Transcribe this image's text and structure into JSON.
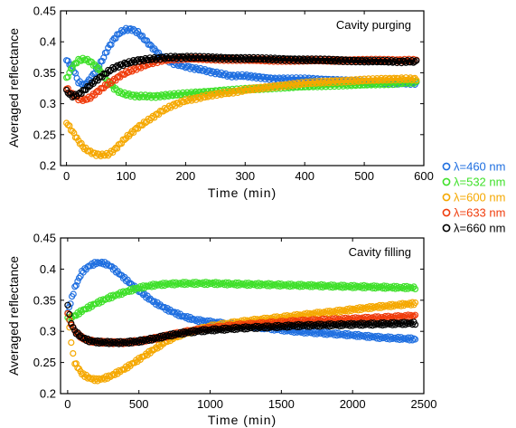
{
  "chart_data": [
    {
      "type": "scatter",
      "annotation": "Cavity purging",
      "xlabel": "Time (min)",
      "ylabel": "Averaged reflectance",
      "xlim": [
        -10,
        600
      ],
      "ylim": [
        0.2,
        0.45
      ],
      "xticks": [
        0,
        100,
        200,
        300,
        400,
        500,
        600
      ],
      "yticks": [
        0.2,
        0.25,
        0.3,
        0.35,
        0.4,
        0.45
      ],
      "xtick_labels": [
        "0",
        "100",
        "200",
        "300",
        "400",
        "500",
        "600"
      ],
      "ytick_labels": [
        "0.2",
        "0.25",
        "0.3",
        "0.35",
        "0.4",
        "0.45"
      ],
      "grid": false,
      "legend_position": "right-middle",
      "series": [
        {
          "name": "λ=460 nm",
          "color": "#1f6fe0",
          "x": [
            0,
            10,
            20,
            30,
            40,
            50,
            60,
            70,
            80,
            90,
            100,
            110,
            120,
            130,
            140,
            150,
            160,
            180,
            200,
            225,
            250,
            275,
            300,
            350,
            400,
            450,
            500,
            550,
            590
          ],
          "y": [
            0.37,
            0.36,
            0.335,
            0.33,
            0.34,
            0.355,
            0.37,
            0.39,
            0.405,
            0.415,
            0.42,
            0.42,
            0.415,
            0.405,
            0.395,
            0.385,
            0.375,
            0.365,
            0.36,
            0.355,
            0.35,
            0.345,
            0.345,
            0.34,
            0.34,
            0.338,
            0.335,
            0.333,
            0.333
          ]
        },
        {
          "name": "λ=532 nm",
          "color": "#3fe02a",
          "x": [
            0,
            10,
            20,
            30,
            40,
            50,
            60,
            70,
            80,
            90,
            100,
            120,
            150,
            200,
            250,
            300,
            350,
            400,
            450,
            500,
            550,
            590
          ],
          "y": [
            0.34,
            0.36,
            0.37,
            0.372,
            0.368,
            0.36,
            0.35,
            0.335,
            0.325,
            0.318,
            0.315,
            0.312,
            0.312,
            0.316,
            0.32,
            0.323,
            0.326,
            0.328,
            0.33,
            0.331,
            0.333,
            0.335
          ]
        },
        {
          "name": "λ=600 nm",
          "color": "#f5a800",
          "x": [
            0,
            10,
            20,
            30,
            40,
            50,
            60,
            70,
            80,
            90,
            100,
            120,
            140,
            160,
            180,
            200,
            225,
            250,
            275,
            300,
            350,
            400,
            450,
            500,
            550,
            590
          ],
          "y": [
            0.27,
            0.255,
            0.24,
            0.228,
            0.222,
            0.218,
            0.217,
            0.218,
            0.225,
            0.235,
            0.245,
            0.262,
            0.275,
            0.288,
            0.298,
            0.305,
            0.31,
            0.315,
            0.318,
            0.322,
            0.328,
            0.333,
            0.336,
            0.338,
            0.34,
            0.34
          ]
        },
        {
          "name": "λ=633 nm",
          "color": "#f03c0c",
          "x": [
            0,
            10,
            20,
            30,
            40,
            50,
            60,
            70,
            80,
            90,
            100,
            120,
            140,
            160,
            180,
            200,
            250,
            300,
            350,
            400,
            450,
            500,
            550,
            590
          ],
          "y": [
            0.325,
            0.315,
            0.308,
            0.306,
            0.31,
            0.318,
            0.325,
            0.332,
            0.338,
            0.345,
            0.35,
            0.358,
            0.365,
            0.37,
            0.372,
            0.373,
            0.372,
            0.371,
            0.37,
            0.37,
            0.37,
            0.37,
            0.37,
            0.37
          ]
        },
        {
          "name": "λ=660 nm",
          "color": "#000000",
          "x": [
            0,
            10,
            20,
            30,
            40,
            50,
            60,
            70,
            80,
            90,
            100,
            120,
            140,
            160,
            180,
            200,
            250,
            300,
            350,
            400,
            450,
            500,
            550,
            590
          ],
          "y": [
            0.32,
            0.312,
            0.315,
            0.322,
            0.33,
            0.338,
            0.345,
            0.352,
            0.358,
            0.362,
            0.365,
            0.37,
            0.372,
            0.374,
            0.375,
            0.375,
            0.374,
            0.373,
            0.372,
            0.371,
            0.37,
            0.369,
            0.368,
            0.368
          ]
        }
      ]
    },
    {
      "type": "scatter",
      "annotation": "Cavity filling",
      "xlabel": "Time (min)",
      "ylabel": "Averaged reflectance",
      "xlim": [
        -50,
        2500
      ],
      "ylim": [
        0.2,
        0.45
      ],
      "xticks": [
        0,
        500,
        1000,
        1500,
        2000,
        2500
      ],
      "yticks": [
        0.2,
        0.25,
        0.3,
        0.35,
        0.4,
        0.45
      ],
      "xtick_labels": [
        "0",
        "500",
        "1000",
        "1500",
        "2000",
        "2500"
      ],
      "ytick_labels": [
        "0.2",
        "0.25",
        "0.3",
        "0.35",
        "0.4",
        "0.45"
      ],
      "grid": false,
      "series": [
        {
          "name": "λ=460 nm",
          "color": "#1f6fe0",
          "x": [
            0,
            50,
            100,
            150,
            200,
            250,
            300,
            350,
            400,
            500,
            600,
            700,
            800,
            900,
            1000,
            1200,
            1400,
            1600,
            1800,
            2000,
            2200,
            2400,
            2450
          ],
          "y": [
            0.33,
            0.37,
            0.395,
            0.405,
            0.41,
            0.41,
            0.405,
            0.395,
            0.385,
            0.365,
            0.348,
            0.335,
            0.325,
            0.318,
            0.315,
            0.31,
            0.305,
            0.3,
            0.297,
            0.294,
            0.29,
            0.288,
            0.287
          ]
        },
        {
          "name": "λ=532 nm",
          "color": "#3fe02a",
          "x": [
            0,
            50,
            100,
            200,
            300,
            400,
            500,
            600,
            700,
            800,
            900,
            1000,
            1200,
            1400,
            1600,
            1800,
            2000,
            2200,
            2450
          ],
          "y": [
            0.32,
            0.325,
            0.333,
            0.345,
            0.355,
            0.363,
            0.37,
            0.374,
            0.376,
            0.377,
            0.377,
            0.377,
            0.376,
            0.375,
            0.374,
            0.373,
            0.372,
            0.371,
            0.37
          ]
        },
        {
          "name": "λ=600 nm",
          "color": "#f5a800",
          "x": [
            0,
            25,
            50,
            100,
            150,
            200,
            250,
            300,
            400,
            500,
            600,
            700,
            800,
            900,
            1000,
            1200,
            1400,
            1600,
            1800,
            2000,
            2200,
            2450
          ],
          "y": [
            0.33,
            0.28,
            0.25,
            0.232,
            0.225,
            0.222,
            0.224,
            0.228,
            0.24,
            0.255,
            0.27,
            0.285,
            0.295,
            0.302,
            0.308,
            0.315,
            0.32,
            0.325,
            0.33,
            0.335,
            0.34,
            0.345
          ]
        },
        {
          "name": "λ=633 nm",
          "color": "#f03c0c",
          "x": [
            0,
            25,
            50,
            100,
            150,
            200,
            300,
            400,
            500,
            600,
            700,
            800,
            900,
            1000,
            1200,
            1400,
            1600,
            1800,
            2000,
            2200,
            2450
          ],
          "y": [
            0.33,
            0.31,
            0.3,
            0.29,
            0.285,
            0.283,
            0.282,
            0.282,
            0.284,
            0.288,
            0.293,
            0.298,
            0.302,
            0.305,
            0.31,
            0.313,
            0.316,
            0.318,
            0.32,
            0.322,
            0.325
          ]
        },
        {
          "name": "λ=660 nm",
          "color": "#000000",
          "x": [
            0,
            25,
            50,
            100,
            150,
            200,
            300,
            400,
            500,
            600,
            700,
            800,
            900,
            1000,
            1200,
            1400,
            1600,
            1800,
            2000,
            2200,
            2450
          ],
          "y": [
            0.34,
            0.315,
            0.3,
            0.29,
            0.285,
            0.283,
            0.282,
            0.282,
            0.284,
            0.288,
            0.293,
            0.297,
            0.3,
            0.302,
            0.305,
            0.307,
            0.309,
            0.31,
            0.311,
            0.312,
            0.313
          ]
        }
      ]
    }
  ],
  "legend": [
    {
      "label": "λ=460 nm",
      "color": "#1f6fe0"
    },
    {
      "label": "λ=532 nm",
      "color": "#3fe02a"
    },
    {
      "label": "λ=600 nm",
      "color": "#f5a800"
    },
    {
      "label": "λ=633 nm",
      "color": "#f03c0c"
    },
    {
      "label": "λ=660 nm",
      "color": "#000000"
    }
  ]
}
